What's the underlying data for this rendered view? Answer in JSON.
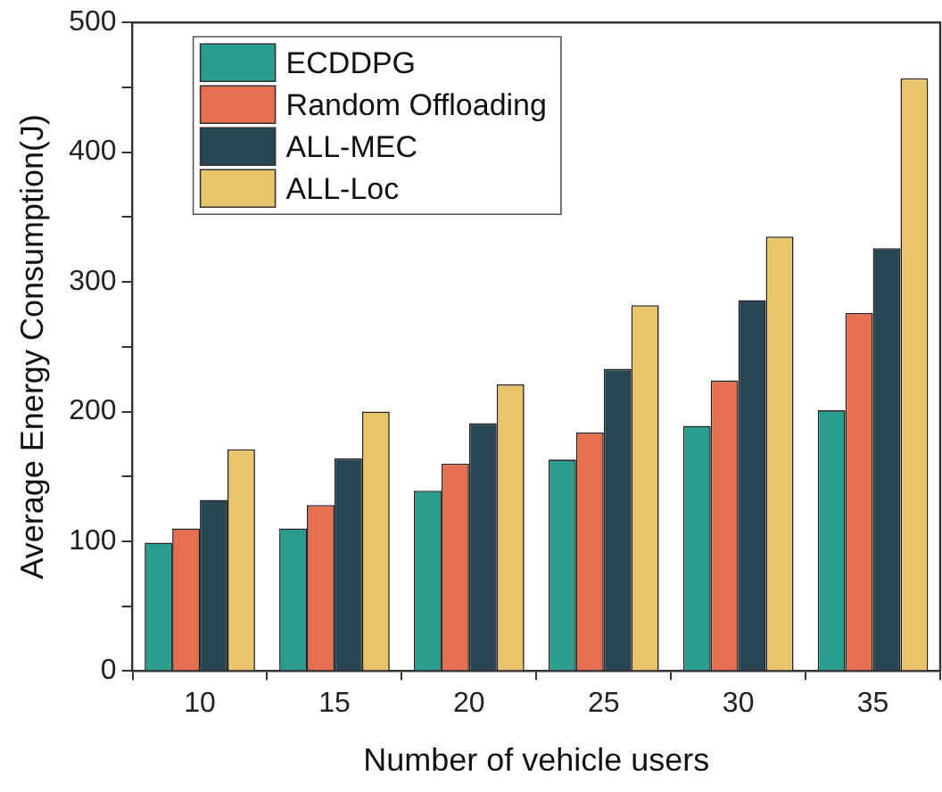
{
  "chart_data": {
    "type": "bar",
    "xlabel": "Number of vehicle users",
    "ylabel": "Average Energy Consumption(J)",
    "categories": [
      "10",
      "15",
      "20",
      "25",
      "30",
      "35"
    ],
    "series": [
      {
        "name": "ECDDPG",
        "color": "#2a9d8f",
        "values": [
          99,
          110,
          139,
          163,
          189,
          201
        ]
      },
      {
        "name": "Random Offloading",
        "color": "#e76f51",
        "values": [
          110,
          128,
          160,
          184,
          224,
          276
        ]
      },
      {
        "name": "ALL-MEC",
        "color": "#264653",
        "values": [
          132,
          164,
          191,
          233,
          286,
          326
        ]
      },
      {
        "name": "ALL-Loc",
        "color": "#e9c46a",
        "values": [
          171,
          200,
          221,
          282,
          335,
          457
        ]
      }
    ],
    "ylim": [
      0,
      500
    ],
    "yticks": [
      0,
      {
        "value": 50,
        "label": null
      },
      100,
      {
        "value": 150,
        "label": null
      },
      200,
      {
        "value": 250,
        "label": null
      },
      300,
      {
        "value": 350,
        "label": null
      },
      400,
      {
        "value": 450,
        "label": null
      },
      500
    ],
    "grid": false,
    "legend": "top left"
  }
}
